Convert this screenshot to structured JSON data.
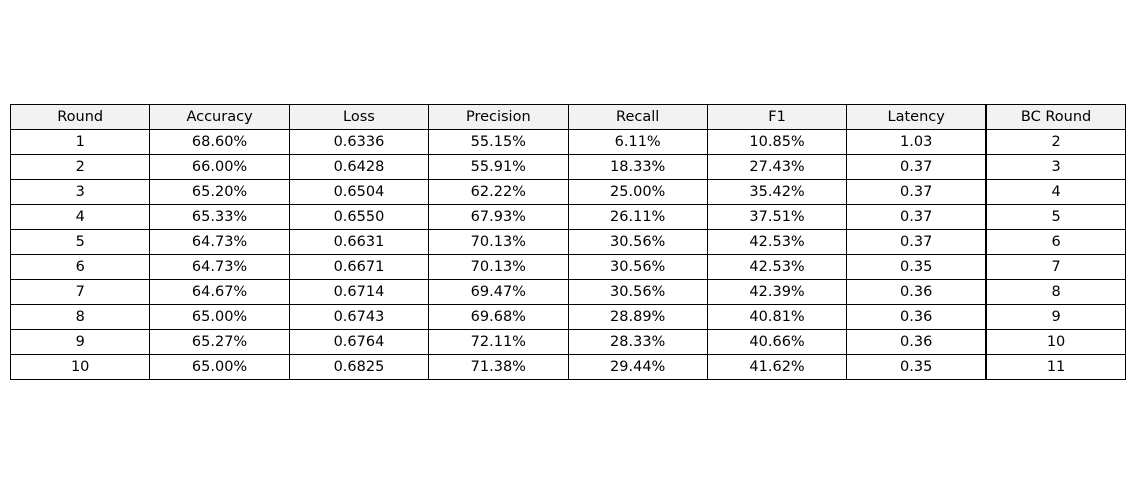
{
  "chart_data": {
    "type": "table",
    "columns": [
      "Round",
      "Accuracy",
      "Loss",
      "Precision",
      "Recall",
      "F1",
      "Latency",
      "BC Round"
    ],
    "rows": [
      [
        "1",
        "68.60%",
        "0.6336",
        "55.15%",
        "6.11%",
        "10.85%",
        "1.03",
        "2"
      ],
      [
        "2",
        "66.00%",
        "0.6428",
        "55.91%",
        "18.33%",
        "27.43%",
        "0.37",
        "3"
      ],
      [
        "3",
        "65.20%",
        "0.6504",
        "62.22%",
        "25.00%",
        "35.42%",
        "0.37",
        "4"
      ],
      [
        "4",
        "65.33%",
        "0.6550",
        "67.93%",
        "26.11%",
        "37.51%",
        "0.37",
        "5"
      ],
      [
        "5",
        "64.73%",
        "0.6631",
        "70.13%",
        "30.56%",
        "42.53%",
        "0.37",
        "6"
      ],
      [
        "6",
        "64.73%",
        "0.6671",
        "70.13%",
        "30.56%",
        "42.53%",
        "0.35",
        "7"
      ],
      [
        "7",
        "64.67%",
        "0.6714",
        "69.47%",
        "30.56%",
        "42.39%",
        "0.36",
        "8"
      ],
      [
        "8",
        "65.00%",
        "0.6743",
        "69.68%",
        "28.89%",
        "40.81%",
        "0.36",
        "9"
      ],
      [
        "9",
        "65.27%",
        "0.6764",
        "72.11%",
        "28.33%",
        "40.66%",
        "0.36",
        "10"
      ],
      [
        "10",
        "65.00%",
        "0.6825",
        "71.38%",
        "29.44%",
        "41.62%",
        "0.35",
        "11"
      ]
    ],
    "colors": {
      "header_bg": "#f2f2f2",
      "cell_bg": "#ffffff",
      "border": "#000000",
      "text": "#000000"
    }
  }
}
